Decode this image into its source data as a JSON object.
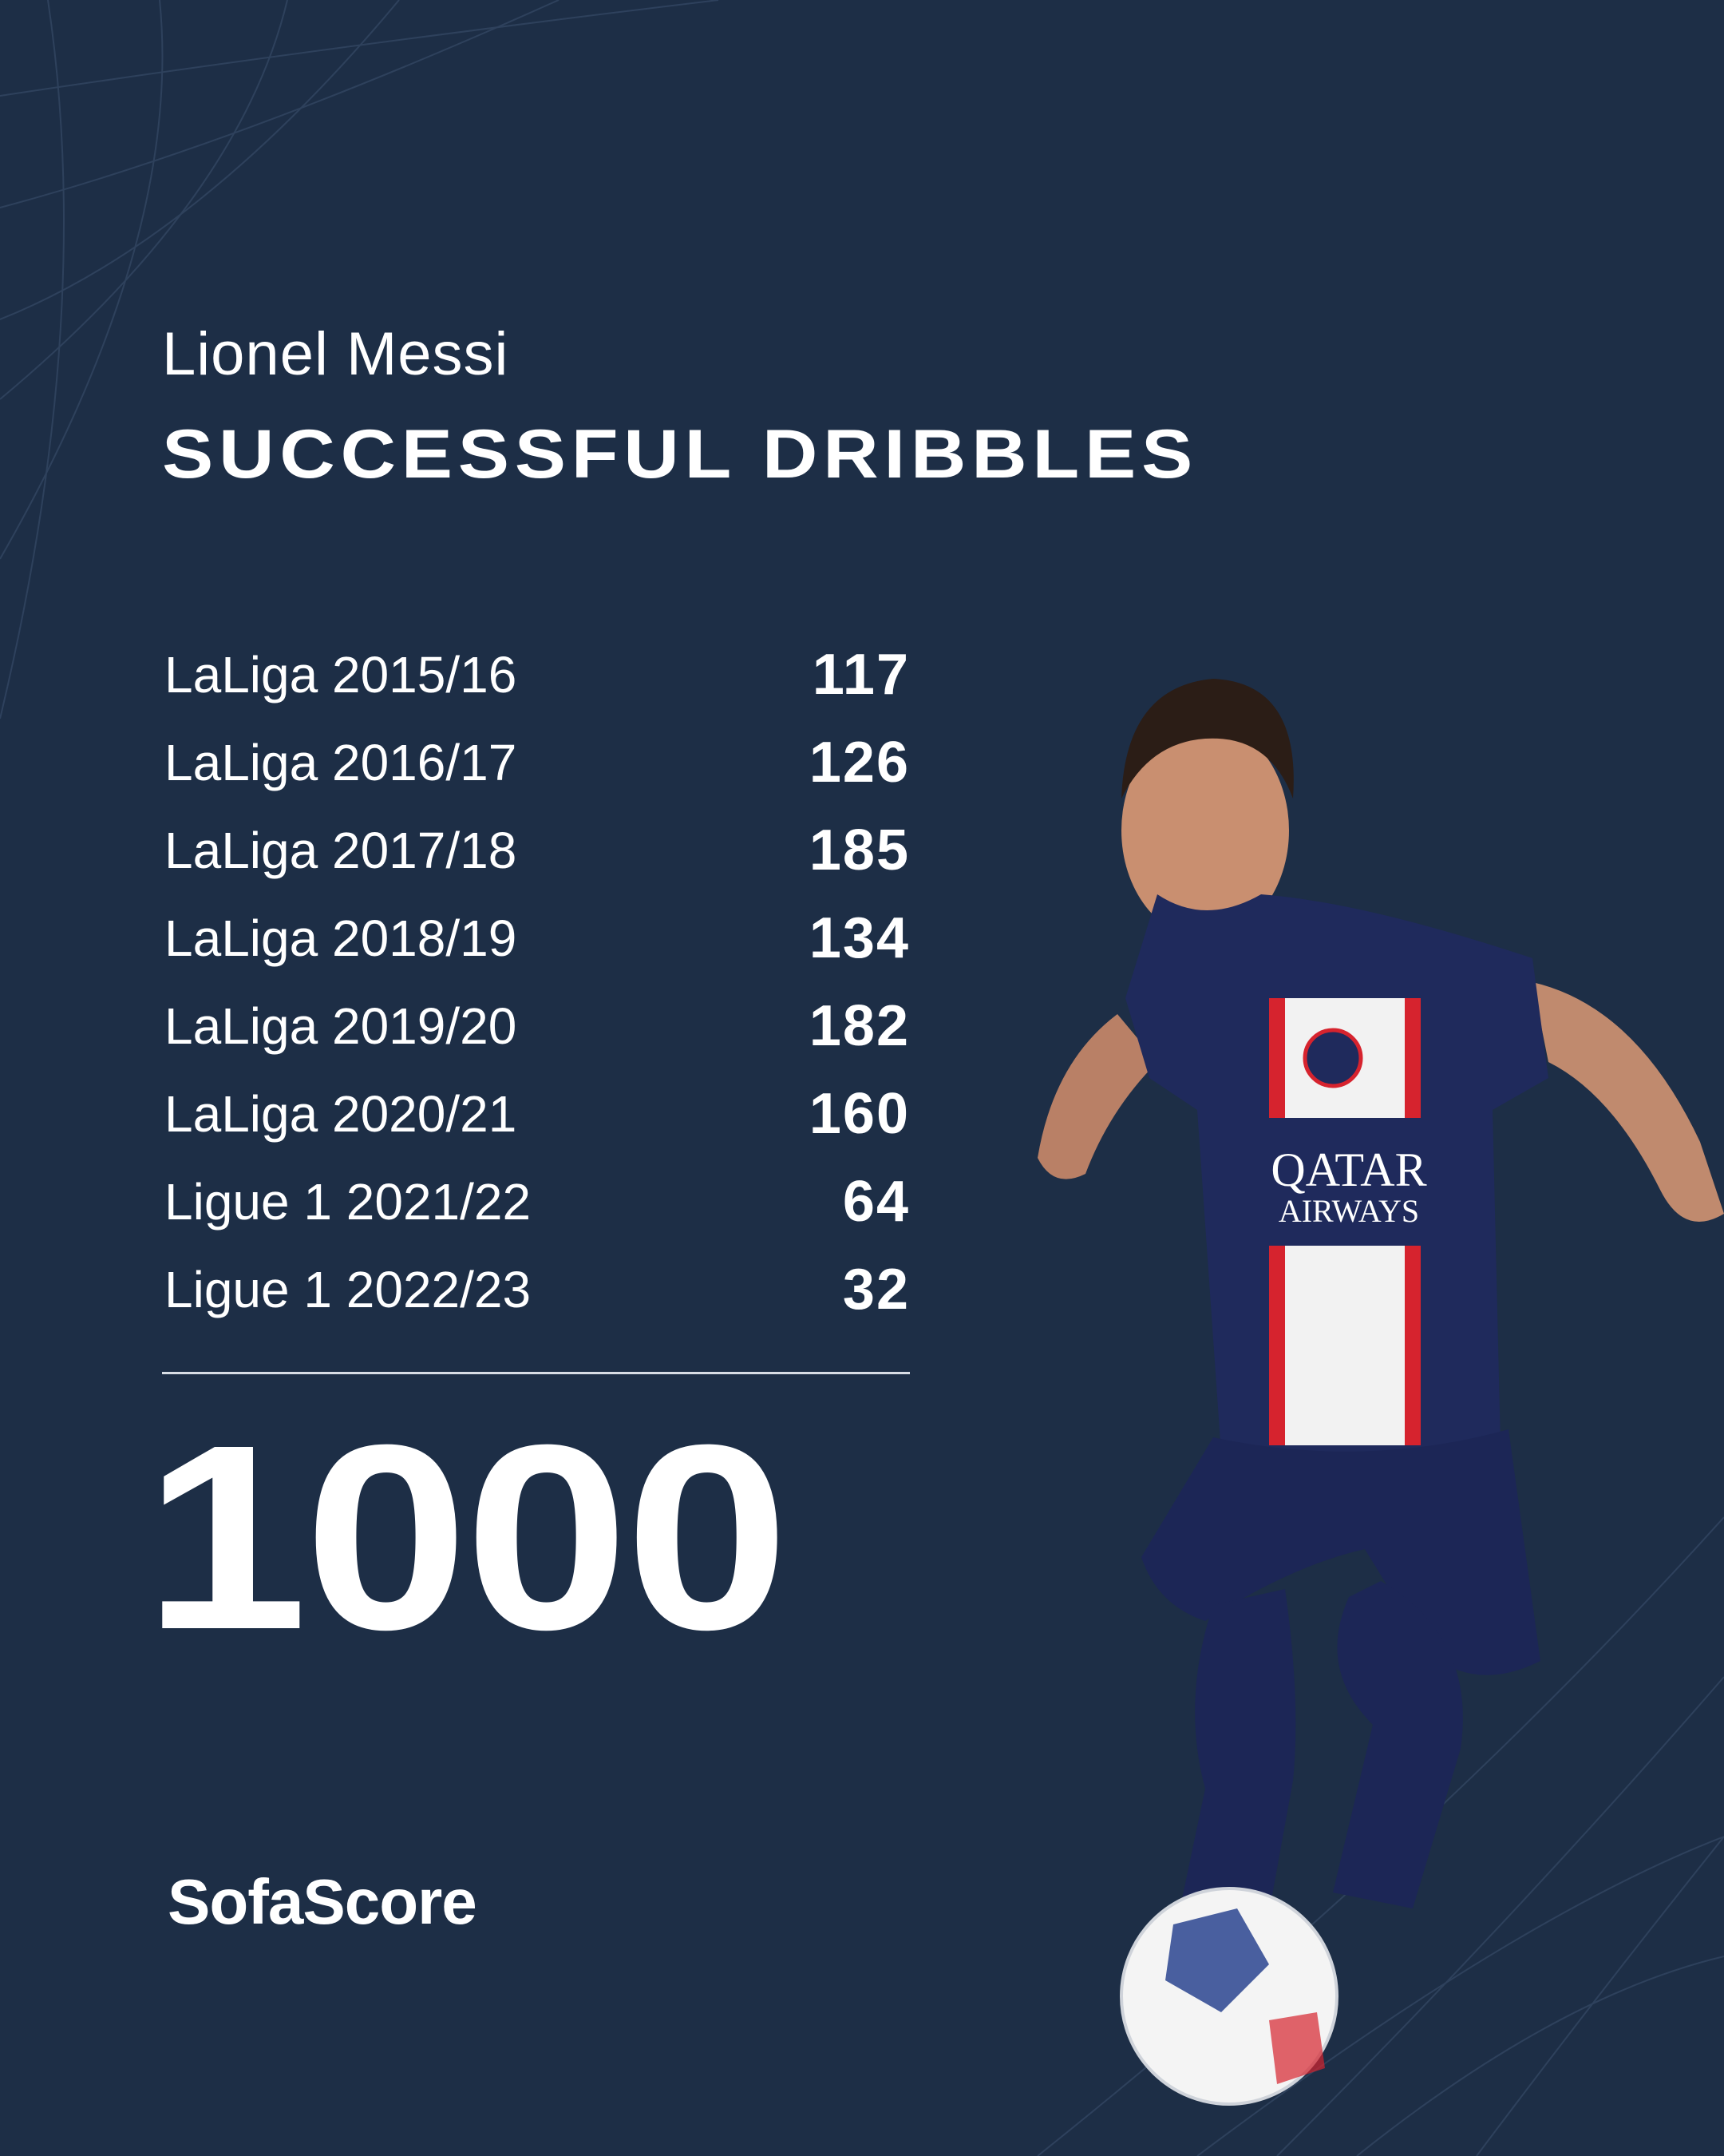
{
  "header": {
    "player_name": "Lionel Messi",
    "title": "SUCCESSFUL DRIBBLES"
  },
  "rows": [
    {
      "label": "LaLiga 2015/16",
      "value": "117"
    },
    {
      "label": "LaLiga 2016/17",
      "value": "126"
    },
    {
      "label": "LaLiga 2017/18",
      "value": "185"
    },
    {
      "label": "LaLiga 2018/19",
      "value": "134"
    },
    {
      "label": "LaLiga 2019/20",
      "value": "182"
    },
    {
      "label": "LaLiga 2020/21",
      "value": "160"
    },
    {
      "label": "Ligue 1 2021/22",
      "value": "64"
    },
    {
      "label": "Ligue 1 2022/23",
      "value": "32"
    }
  ],
  "total": "1000",
  "brand": "SofaScore",
  "photo": {
    "jersey_sponsor": "QATAR AIRWAYS",
    "colors": {
      "background": "#1d2e46",
      "jersey": "#1f2a5c",
      "stripe_red": "#d6232e"
    }
  }
}
